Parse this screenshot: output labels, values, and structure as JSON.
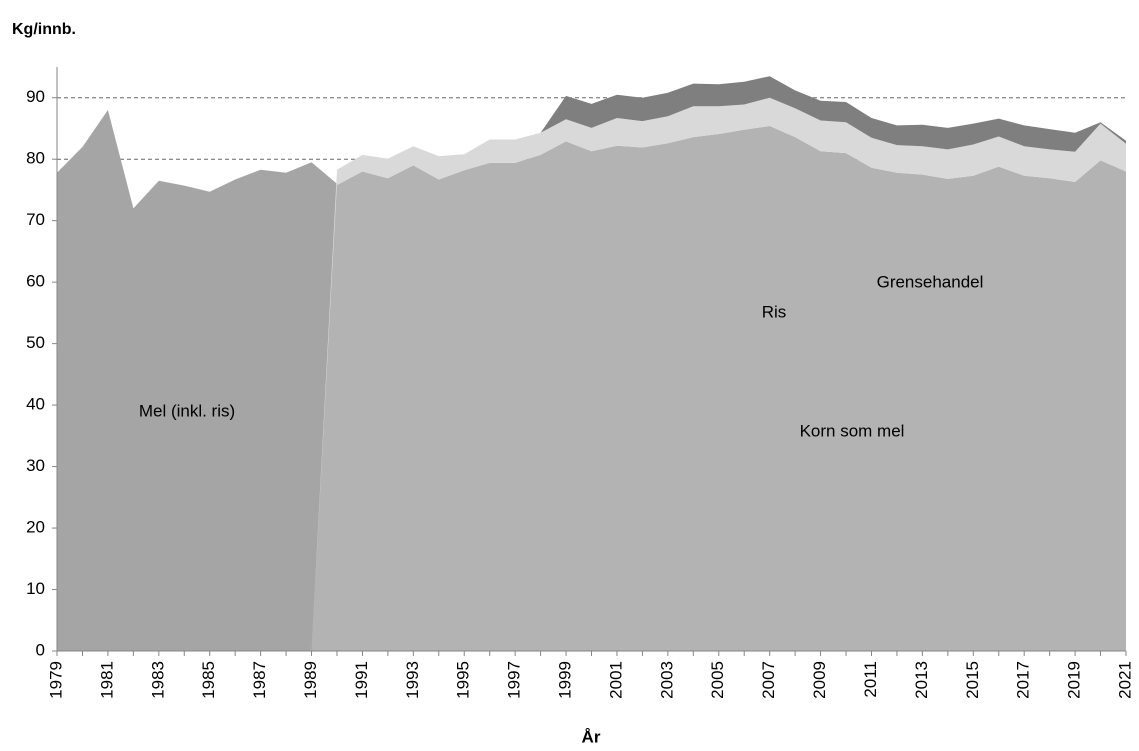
{
  "chart_data": {
    "type": "area",
    "y_label": "Kg/innb.",
    "x_label": "År",
    "categories": [
      "1979",
      null,
      "1981",
      null,
      "1983",
      null,
      "1985",
      null,
      "1987",
      null,
      "1989",
      null,
      "1991",
      null,
      "1993",
      null,
      "1995",
      null,
      "1997",
      null,
      "1999",
      null,
      "2001",
      null,
      "2003",
      null,
      "2005",
      null,
      "2007",
      null,
      "2009",
      null,
      "2011",
      null,
      "2013",
      null,
      "2015",
      null,
      "2017",
      null,
      "2019",
      null,
      "2021"
    ],
    "series": [
      {
        "name": "Mel (inkl. ris)",
        "color": "#a5a5a5",
        "stacked": false,
        "values": [
          77.8,
          82,
          88,
          72,
          76.5,
          75.7,
          74.7,
          76.7,
          78.3,
          77.8,
          79.5,
          76,
          null,
          null,
          null,
          null,
          null,
          null,
          null,
          null,
          null,
          null,
          null,
          null,
          null,
          null,
          null,
          null,
          null,
          null,
          null,
          null,
          null,
          null,
          null,
          null,
          null,
          null,
          null,
          null,
          null,
          null,
          null
        ]
      },
      {
        "name": "Korn som mel",
        "color": "#b3b3b3",
        "stacked": true,
        "values": [
          null,
          null,
          null,
          null,
          null,
          null,
          null,
          null,
          null,
          null,
          0,
          75.8,
          78,
          76.9,
          79,
          76.7,
          78.2,
          79.4,
          79.4,
          80.7,
          82.9,
          81.3,
          82.2,
          81.9,
          82.6,
          83.6,
          84.1,
          84.8,
          85.4,
          83.6,
          81.3,
          81,
          78.6,
          77.8,
          77.5,
          76.8,
          77.3,
          78.8,
          77.3,
          76.9,
          76.3,
          79.8,
          78
        ]
      },
      {
        "name": "Ris",
        "color": "#d9d9d9",
        "stacked": true,
        "values": [
          null,
          null,
          null,
          null,
          null,
          null,
          null,
          null,
          null,
          null,
          0,
          2.5,
          2.7,
          3.2,
          3.1,
          3.8,
          2.6,
          3.8,
          3.8,
          3.6,
          3.6,
          3.8,
          4.5,
          4.3,
          4.4,
          5.0,
          4.5,
          4.1,
          4.6,
          4.7,
          5.0,
          5.0,
          4.9,
          4.5,
          4.6,
          4.8,
          5.1,
          4.9,
          4.8,
          4.7,
          4.9,
          6.0,
          4.5
        ]
      },
      {
        "name": "Grensehandel",
        "color": "#7f7f7f",
        "stacked": true,
        "values": [
          null,
          null,
          null,
          null,
          null,
          null,
          null,
          null,
          null,
          null,
          null,
          null,
          null,
          null,
          null,
          null,
          null,
          null,
          null,
          0,
          3.8,
          3.9,
          3.8,
          3.8,
          3.8,
          3.7,
          3.6,
          3.7,
          3.5,
          2.9,
          3.2,
          3.3,
          3.2,
          3.2,
          3.5,
          3.5,
          3.4,
          2.9,
          3.4,
          3.3,
          3.1,
          0.2,
          0.5
        ]
      }
    ],
    "ylim": [
      0,
      95
    ],
    "yticks": [
      0,
      10,
      20,
      30,
      40,
      50,
      60,
      70,
      80,
      90
    ],
    "grid": true
  }
}
